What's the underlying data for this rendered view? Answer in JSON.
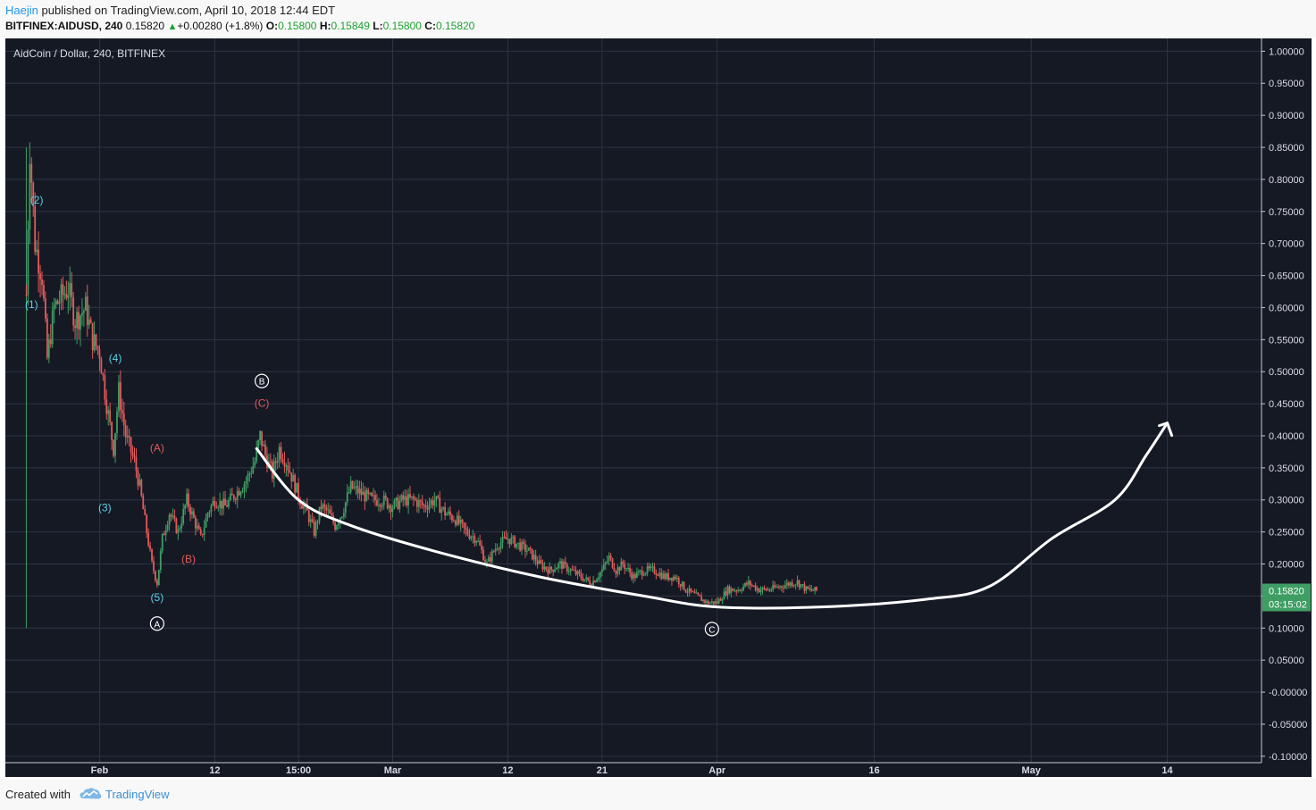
{
  "header": {
    "author": "Haejin",
    "published_text": "published on TradingView.com, April 10, 2018 12:44 EDT",
    "symbol": "BITFINEX:AIDUSD, 240",
    "last": "0.15820",
    "change": "+0.00280 (+1.8%)",
    "o_label": "O:",
    "o_value": "0.15800",
    "h_label": "H:",
    "h_value": "0.15849",
    "l_label": "L:",
    "l_value": "0.15800",
    "c_label": "C:",
    "c_value": "0.15820"
  },
  "footer": {
    "created_with": "Created with",
    "brand": "TradingView",
    "logo_icon": "tradingview-cloud-icon"
  },
  "colors": {
    "background": "#151924",
    "grid": "#2e3443",
    "up": "#3e9e63",
    "down": "#e25a5a",
    "wave_cyan": "#5ad2e6",
    "wave_red": "#e25a5a",
    "price_badge": "#3e9e63",
    "drawing": "#ffffff"
  },
  "chart_data": {
    "type": "candlestick",
    "title": "AidCoin / Dollar, 240, BITFINEX",
    "ylim": [
      -0.11,
      1.02
    ],
    "yticks": [
      "1.00000",
      "0.95000",
      "0.90000",
      "0.85000",
      "0.80000",
      "0.75000",
      "0.70000",
      "0.65000",
      "0.60000",
      "0.55000",
      "0.50000",
      "0.45000",
      "0.40000",
      "0.35000",
      "0.30000",
      "0.25000",
      "0.20000",
      "0.15000",
      "0.10000",
      "0.05000",
      "-0.00000",
      "-0.05000",
      "-0.10000"
    ],
    "ytick_values": [
      1.0,
      0.95,
      0.9,
      0.85,
      0.8,
      0.75,
      0.7,
      0.65,
      0.6,
      0.55,
      0.5,
      0.45,
      0.4,
      0.35,
      0.3,
      0.25,
      0.2,
      0.15,
      0.1,
      0.05,
      0.0,
      -0.05,
      -0.1
    ],
    "xlim": [
      "2018-01-23",
      "2018-05-23"
    ],
    "xticks": [
      {
        "label": "Feb",
        "date": "2018-02-01"
      },
      {
        "label": "12",
        "date": "2018-02-12"
      },
      {
        "label": "15:00",
        "date": "2018-02-20"
      },
      {
        "label": "Mar",
        "date": "2018-03-01"
      },
      {
        "label": "12",
        "date": "2018-03-12"
      },
      {
        "label": "21",
        "date": "2018-03-21"
      },
      {
        "label": "Apr",
        "date": "2018-04-01"
      },
      {
        "label": "16",
        "date": "2018-04-16"
      },
      {
        "label": "May",
        "date": "2018-05-01"
      },
      {
        "label": "14",
        "date": "2018-05-14"
      }
    ],
    "price_path": [
      [
        "2018-01-25 00:00",
        0.62
      ],
      [
        "2018-01-25 08:00",
        0.85
      ],
      [
        "2018-01-25 20:00",
        0.7
      ],
      [
        "2018-01-26 12:00",
        0.65
      ],
      [
        "2018-01-27 00:00",
        0.52
      ],
      [
        "2018-01-27 16:00",
        0.6
      ],
      [
        "2018-01-28 12:00",
        0.62
      ],
      [
        "2018-01-29 00:00",
        0.63
      ],
      [
        "2018-01-29 16:00",
        0.58
      ],
      [
        "2018-01-30 16:00",
        0.6
      ],
      [
        "2018-01-31 08:00",
        0.55
      ],
      [
        "2018-02-01 00:00",
        0.53
      ],
      [
        "2018-02-01 16:00",
        0.45
      ],
      [
        "2018-02-02 08:00",
        0.38
      ],
      [
        "2018-02-02 20:00",
        0.47
      ],
      [
        "2018-02-03 12:00",
        0.4
      ],
      [
        "2018-02-04 08:00",
        0.36
      ],
      [
        "2018-02-04 20:00",
        0.32
      ],
      [
        "2018-02-05 12:00",
        0.25
      ],
      [
        "2018-02-06 00:00",
        0.2
      ],
      [
        "2018-02-06 12:00",
        0.17
      ],
      [
        "2018-02-07 00:00",
        0.24
      ],
      [
        "2018-02-07 16:00",
        0.28
      ],
      [
        "2018-02-08 12:00",
        0.25
      ],
      [
        "2018-02-09 08:00",
        0.3
      ],
      [
        "2018-02-10 00:00",
        0.27
      ],
      [
        "2018-02-10 16:00",
        0.24
      ],
      [
        "2018-02-11 08:00",
        0.28
      ],
      [
        "2018-02-12 00:00",
        0.3
      ],
      [
        "2018-02-13 00:00",
        0.29
      ],
      [
        "2018-02-14 00:00",
        0.31
      ],
      [
        "2018-02-15 00:00",
        0.33
      ],
      [
        "2018-02-15 20:00",
        0.36
      ],
      [
        "2018-02-16 08:00",
        0.4
      ],
      [
        "2018-02-16 20:00",
        0.37
      ],
      [
        "2018-02-17 12:00",
        0.34
      ],
      [
        "2018-02-18 04:00",
        0.38
      ],
      [
        "2018-02-18 20:00",
        0.36
      ],
      [
        "2018-02-19 12:00",
        0.33
      ],
      [
        "2018-02-20 04:00",
        0.3
      ],
      [
        "2018-02-20 20:00",
        0.28
      ],
      [
        "2018-02-21 12:00",
        0.25
      ],
      [
        "2018-02-22 04:00",
        0.29
      ],
      [
        "2018-02-22 20:00",
        0.28
      ],
      [
        "2018-02-23 12:00",
        0.26
      ],
      [
        "2018-02-24 04:00",
        0.28
      ],
      [
        "2018-02-25 00:00",
        0.32
      ],
      [
        "2018-02-26 00:00",
        0.31
      ],
      [
        "2018-02-27 00:00",
        0.3
      ],
      [
        "2018-02-28 00:00",
        0.3
      ],
      [
        "2018-03-01 00:00",
        0.29
      ],
      [
        "2018-03-02 00:00",
        0.3
      ],
      [
        "2018-03-03 00:00",
        0.3
      ],
      [
        "2018-03-04 00:00",
        0.29
      ],
      [
        "2018-03-05 00:00",
        0.3
      ],
      [
        "2018-03-06 00:00",
        0.28
      ],
      [
        "2018-03-07 00:00",
        0.27
      ],
      [
        "2018-03-08 00:00",
        0.25
      ],
      [
        "2018-03-09 00:00",
        0.24
      ],
      [
        "2018-03-10 00:00",
        0.2
      ],
      [
        "2018-03-11 00:00",
        0.23
      ],
      [
        "2018-03-12 00:00",
        0.24
      ],
      [
        "2018-03-13 00:00",
        0.23
      ],
      [
        "2018-03-14 00:00",
        0.22
      ],
      [
        "2018-03-15 00:00",
        0.2
      ],
      [
        "2018-03-16 00:00",
        0.19
      ],
      [
        "2018-03-17 00:00",
        0.2
      ],
      [
        "2018-03-18 00:00",
        0.19
      ],
      [
        "2018-03-19 00:00",
        0.18
      ],
      [
        "2018-03-20 00:00",
        0.17
      ],
      [
        "2018-03-21 00:00",
        0.19
      ],
      [
        "2018-03-21 16:00",
        0.21
      ],
      [
        "2018-03-22 08:00",
        0.19
      ],
      [
        "2018-03-23 00:00",
        0.2
      ],
      [
        "2018-03-24 00:00",
        0.18
      ],
      [
        "2018-03-25 00:00",
        0.19
      ],
      [
        "2018-03-26 00:00",
        0.19
      ],
      [
        "2018-03-27 00:00",
        0.18
      ],
      [
        "2018-03-28 00:00",
        0.18
      ],
      [
        "2018-03-29 00:00",
        0.16
      ],
      [
        "2018-03-30 00:00",
        0.15
      ],
      [
        "2018-03-31 00:00",
        0.14
      ],
      [
        "2018-04-01 00:00",
        0.14
      ],
      [
        "2018-04-02 00:00",
        0.16
      ],
      [
        "2018-04-03 00:00",
        0.16
      ],
      [
        "2018-04-04 00:00",
        0.17
      ],
      [
        "2018-04-05 00:00",
        0.16
      ],
      [
        "2018-04-06 00:00",
        0.16
      ],
      [
        "2018-04-07 00:00",
        0.165
      ],
      [
        "2018-04-08 00:00",
        0.17
      ],
      [
        "2018-04-08 16:00",
        0.172
      ],
      [
        "2018-04-09 12:00",
        0.16
      ],
      [
        "2018-04-10 12:00",
        0.1582
      ]
    ],
    "spike": {
      "date": "2018-01-25 00:00",
      "low": 0.1,
      "high": 0.85
    },
    "last_price": {
      "value": 0.1582,
      "label": "0.15820",
      "countdown": "03:15:02"
    },
    "wave_labels": [
      {
        "text": "(1)",
        "date": "2018-01-25 12:00",
        "price": 0.605,
        "color": "cyan"
      },
      {
        "text": "(2)",
        "date": "2018-01-26 00:00",
        "price": 0.7675,
        "color": "cyan"
      },
      {
        "text": "(3)",
        "date": "2018-02-01 12:00",
        "price": 0.2875,
        "color": "cyan"
      },
      {
        "text": "(4)",
        "date": "2018-02-02 12:00",
        "price": 0.5215,
        "color": "cyan"
      },
      {
        "text": "(5)",
        "date": "2018-02-06 12:00",
        "price": 0.1475,
        "color": "cyan"
      },
      {
        "text": "(A)",
        "date": "2018-02-06 12:00",
        "price": 0.3815,
        "color": "red"
      },
      {
        "text": "(B)",
        "date": "2018-02-09 12:00",
        "price": 0.2075,
        "color": "red"
      },
      {
        "text": "(C)",
        "date": "2018-02-16 12:00",
        "price": 0.4505,
        "color": "red"
      }
    ],
    "circle_labels": [
      {
        "text": "A",
        "date": "2018-02-06 12:00",
        "price": 0.107
      },
      {
        "text": "B",
        "date": "2018-02-16 12:00",
        "price": 0.4855
      },
      {
        "text": "C",
        "date": "2018-03-31 12:00",
        "price": 0.0985
      }
    ],
    "drawn_curve": [
      [
        "2018-02-16 00:00",
        0.38
      ],
      [
        "2018-02-20 00:00",
        0.3
      ],
      [
        "2018-02-25 00:00",
        0.26
      ],
      [
        "2018-03-05 00:00",
        0.22
      ],
      [
        "2018-03-15 00:00",
        0.18
      ],
      [
        "2018-03-25 00:00",
        0.15
      ],
      [
        "2018-04-01 00:00",
        0.133
      ],
      [
        "2018-04-11 00:00",
        0.133
      ],
      [
        "2018-04-21 00:00",
        0.145
      ],
      [
        "2018-04-27 00:00",
        0.165
      ],
      [
        "2018-05-03 00:00",
        0.24
      ],
      [
        "2018-05-09 00:00",
        0.3
      ],
      [
        "2018-05-12 00:00",
        0.37
      ],
      [
        "2018-05-14 00:00",
        0.42
      ]
    ],
    "arrow": {
      "date": "2018-05-14 00:00",
      "price": 0.42
    }
  }
}
